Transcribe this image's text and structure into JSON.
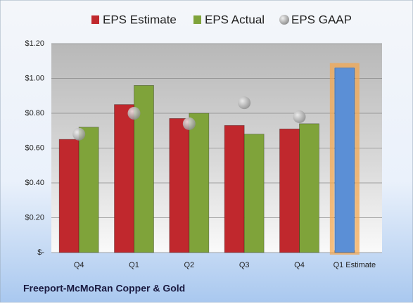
{
  "chart_data": {
    "type": "bar",
    "footer": "Freeport-McMoRan Copper & Gold",
    "categories": [
      "Q4",
      "Q1",
      "Q2",
      "Q3",
      "Q4",
      "Q1 Estimate"
    ],
    "series": [
      {
        "name": "EPS Estimate",
        "color": "#c0282d",
        "colors": [
          "#c0282d",
          "#c0282d",
          "#c0282d",
          "#c0282d",
          "#c0282d",
          "#5b8fd6"
        ],
        "values": [
          0.65,
          0.85,
          0.77,
          0.73,
          0.71,
          1.06
        ]
      },
      {
        "name": "EPS Actual",
        "color": "#7fa33a",
        "values": [
          0.72,
          0.96,
          0.8,
          0.68,
          0.74,
          null
        ]
      },
      {
        "name": "EPS GAAP",
        "color": "#a8a8a8",
        "type": "scatter",
        "values": [
          0.68,
          0.8,
          0.74,
          0.86,
          0.78,
          null
        ]
      }
    ],
    "ylim": [
      0,
      1.2
    ],
    "yticks": [
      {
        "value": 0,
        "label": "$-"
      },
      {
        "value": 0.2,
        "label": "$0.20"
      },
      {
        "value": 0.4,
        "label": "$0.40"
      },
      {
        "value": 0.6,
        "label": "$0.60"
      },
      {
        "value": 0.8,
        "label": "$0.80"
      },
      {
        "value": 1.0,
        "label": "$1.00"
      },
      {
        "value": 1.2,
        "label": "$1.20"
      }
    ],
    "grid": true
  }
}
